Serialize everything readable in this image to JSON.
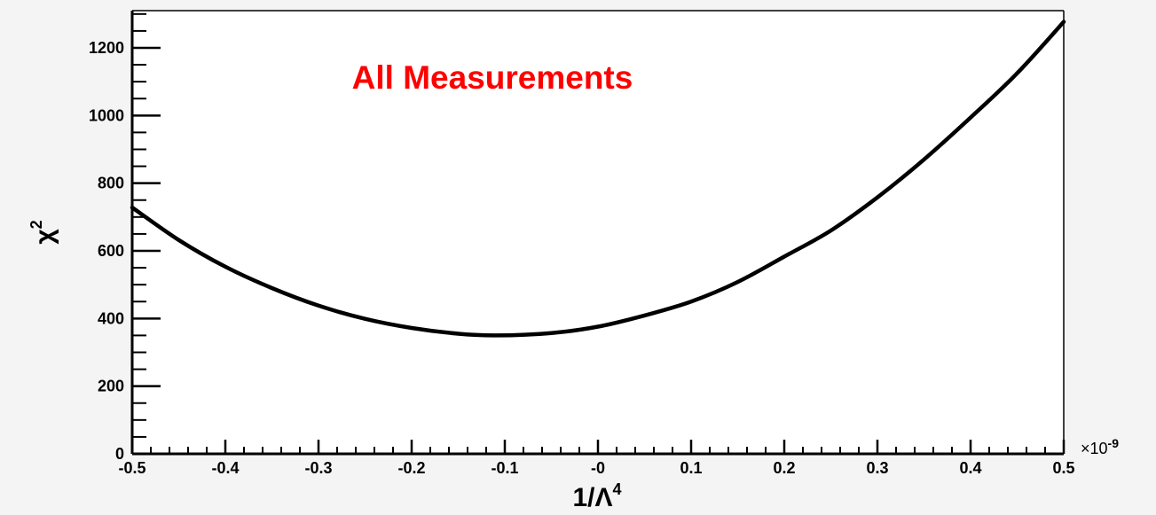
{
  "chart_data": {
    "type": "line",
    "title": "All Measurements",
    "title_color": "#ff0000",
    "xlabel_prefix": "1/Λ",
    "xlabel_sup": "4",
    "ylabel_base": "χ",
    "ylabel_sup": "2",
    "x_multiplier_base": "×10",
    "x_multiplier_exp": "-9",
    "xlim": [
      -0.5,
      0.5
    ],
    "ylim": [
      0,
      1310
    ],
    "xticks": [
      -0.5,
      -0.4,
      -0.3,
      -0.2,
      -0.1,
      0,
      0.1,
      0.2,
      0.3,
      0.4,
      0.5
    ],
    "xtick_labels": [
      "-0.5",
      "-0.4",
      "-0.3",
      "-0.2",
      "-0.1",
      "-0",
      "0.1",
      "0.2",
      "0.3",
      "0.4",
      "0.5"
    ],
    "yticks": [
      0,
      200,
      400,
      600,
      800,
      1000,
      1200
    ],
    "ytick_labels": [
      "0",
      "200",
      "400",
      "600",
      "800",
      "1000",
      "1200"
    ],
    "grid": false,
    "line_color": "#000000",
    "series": [
      {
        "x": [
          -0.5,
          -0.45,
          -0.4,
          -0.35,
          -0.3,
          -0.25,
          -0.2,
          -0.15,
          -0.11,
          -0.05,
          0,
          0.05,
          0.1,
          0.15,
          0.2,
          0.25,
          0.3,
          0.35,
          0.4,
          0.45,
          0.5
        ],
        "y": [
          728,
          632,
          553,
          490,
          438,
          399,
          372,
          355,
          350,
          357,
          376,
          409,
          450,
          508,
          583,
          660,
          758,
          870,
          994,
          1125,
          1277
        ]
      }
    ]
  }
}
